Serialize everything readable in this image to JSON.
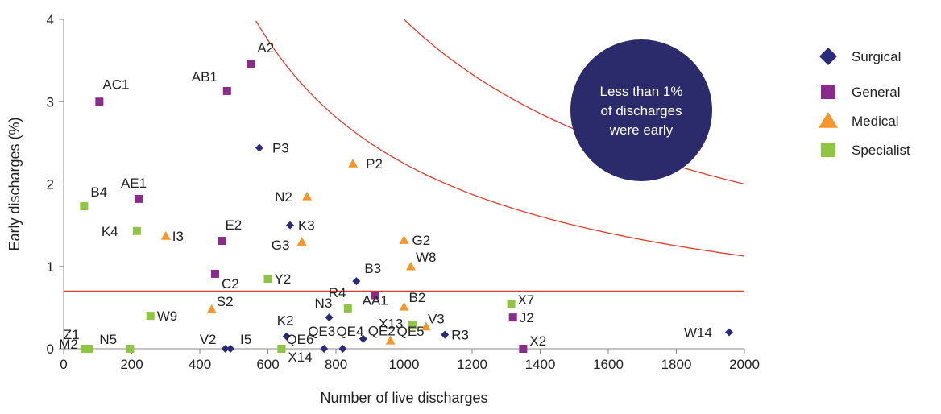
{
  "chart_data": {
    "type": "scatter",
    "xlabel": "Number of live discharges",
    "ylabel": "Early discharges (%)",
    "xlim": [
      0,
      2000
    ],
    "ylim": [
      0,
      4
    ],
    "x_ticks": [
      "0",
      "200",
      "400",
      "600",
      "800",
      "1000",
      "1200",
      "1400",
      "1600",
      "1800",
      "2000"
    ],
    "y_ticks": [
      "0",
      "1",
      "2",
      "3",
      "4"
    ],
    "grid": false,
    "legend_position": "right",
    "annotation": {
      "lines": [
        "Less than 1%",
        "of discharges",
        "were early"
      ],
      "fill": "#2b2a6a"
    },
    "reference_lines": {
      "color": "#e03a2e",
      "horizontal_y": 0.7,
      "curves": [
        {
          "k": 4000
        },
        {
          "k": 2250
        }
      ]
    },
    "series": [
      {
        "name": "Surgical",
        "marker": "diamond",
        "color": "#2a2a7a",
        "points": [
          {
            "label": "P3",
            "x": 575,
            "y": 2.44
          },
          {
            "label": "K3",
            "x": 665,
            "y": 1.5
          },
          {
            "label": "B3",
            "x": 860,
            "y": 0.82
          },
          {
            "label": "N3",
            "x": 780,
            "y": 0.38
          },
          {
            "label": "K2",
            "x": 655,
            "y": 0.15
          },
          {
            "label": "QE3",
            "x": 765,
            "y": 0.0
          },
          {
            "label": "QE4",
            "x": 820,
            "y": 0.0
          },
          {
            "label": "QE2",
            "x": 880,
            "y": 0.12
          },
          {
            "label": "R3",
            "x": 1120,
            "y": 0.17
          },
          {
            "label": "V2",
            "x": 475,
            "y": 0.0
          },
          {
            "label": "I5",
            "x": 490,
            "y": 0.0
          },
          {
            "label": "W14",
            "x": 1955,
            "y": 0.2
          }
        ]
      },
      {
        "name": "General",
        "marker": "square",
        "color": "#8a2a8a",
        "points": [
          {
            "label": "A2",
            "x": 550,
            "y": 3.46
          },
          {
            "label": "AB1",
            "x": 480,
            "y": 3.13
          },
          {
            "label": "AC1",
            "x": 105,
            "y": 3.0
          },
          {
            "label": "AE1",
            "x": 220,
            "y": 1.82
          },
          {
            "label": "E2",
            "x": 465,
            "y": 1.31
          },
          {
            "label": "C2",
            "x": 445,
            "y": 0.91
          },
          {
            "label": "AA1",
            "x": 915,
            "y": 0.65
          },
          {
            "label": "J2",
            "x": 1320,
            "y": 0.38
          },
          {
            "label": "X2",
            "x": 1350,
            "y": 0.0
          }
        ]
      },
      {
        "name": "Medical",
        "marker": "triangle",
        "color": "#f5962a",
        "points": [
          {
            "label": "P2",
            "x": 850,
            "y": 2.25
          },
          {
            "label": "N2",
            "x": 715,
            "y": 1.85
          },
          {
            "label": "I3",
            "x": 300,
            "y": 1.37
          },
          {
            "label": "G3",
            "x": 700,
            "y": 1.3
          },
          {
            "label": "G2",
            "x": 1000,
            "y": 1.32
          },
          {
            "label": "W8",
            "x": 1020,
            "y": 1.0
          },
          {
            "label": "S2",
            "x": 435,
            "y": 0.48
          },
          {
            "label": "B2",
            "x": 1000,
            "y": 0.51
          },
          {
            "label": "V3",
            "x": 1065,
            "y": 0.27
          },
          {
            "label": "QE5",
            "x": 960,
            "y": 0.1
          }
        ]
      },
      {
        "name": "Specialist",
        "marker": "square",
        "color": "#8ec63f",
        "points": [
          {
            "label": "B4",
            "x": 60,
            "y": 1.73
          },
          {
            "label": "K4",
            "x": 215,
            "y": 1.43
          },
          {
            "label": "Y2",
            "x": 600,
            "y": 0.85
          },
          {
            "label": "W9",
            "x": 255,
            "y": 0.4
          },
          {
            "label": "R4",
            "x": 835,
            "y": 0.49
          },
          {
            "label": "X13",
            "x": 1025,
            "y": 0.29
          },
          {
            "label": "X7",
            "x": 1315,
            "y": 0.54
          },
          {
            "label": "Z1",
            "x": 75,
            "y": 0.0
          },
          {
            "label": "M2",
            "x": 62,
            "y": 0.0
          },
          {
            "label": "N5",
            "x": 195,
            "y": 0.0
          },
          {
            "label": "QE6",
            "x": 640,
            "y": 0.0
          },
          {
            "label": "X14",
            "x": 640,
            "y": 0.0
          }
        ]
      }
    ]
  }
}
